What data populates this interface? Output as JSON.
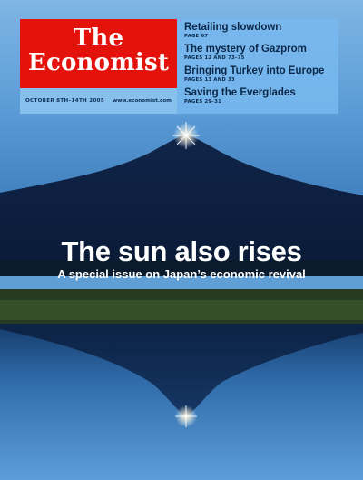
{
  "masthead": {
    "line1": "The",
    "line2": "Economist"
  },
  "dateline": {
    "date": "OCTOBER 8TH–14TH 2005",
    "url": "www.economist.com"
  },
  "coverlines": [
    {
      "title": "Retailing slowdown",
      "page": "PAGE 67"
    },
    {
      "title": "The mystery of Gazprom",
      "page": "PAGES 12 AND 73–75"
    },
    {
      "title": "Bringing Turkey into Europe",
      "page": "PAGES 13 AND 33"
    },
    {
      "title": "Saving the Everglades",
      "page": "PAGES 29–31"
    }
  ],
  "headline": "The sun also rises",
  "subhead": "A special issue on Japan’s economic revival",
  "colors": {
    "brand_red": "#e3120b",
    "panel_blue": "#78b9f0",
    "sky_blue": "#5b9cd6"
  }
}
